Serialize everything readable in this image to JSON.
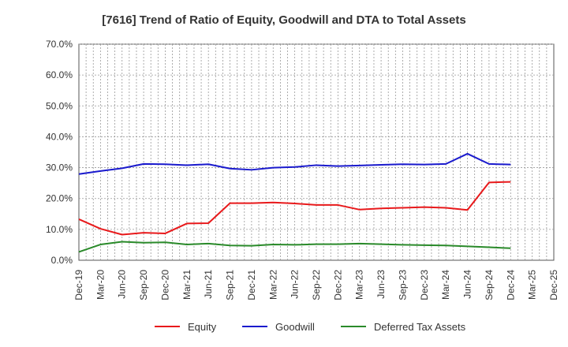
{
  "chart_data": {
    "type": "line",
    "title": "[7616]  Trend of Ratio of Equity, Goodwill and DTA to Total Assets",
    "xlabel": "",
    "ylabel": "",
    "ylim": [
      0,
      70
    ],
    "y_ticks": [
      "0.0%",
      "10.0%",
      "20.0%",
      "30.0%",
      "40.0%",
      "50.0%",
      "60.0%",
      "70.0%"
    ],
    "x_tick_labels": [
      "Dec-19",
      "Mar-20",
      "Jun-20",
      "Sep-20",
      "Dec-20",
      "Mar-21",
      "Jun-21",
      "Sep-21",
      "Dec-21",
      "Mar-22",
      "Jun-22",
      "Sep-22",
      "Dec-22",
      "Mar-23",
      "Jun-23",
      "Sep-23",
      "Dec-23",
      "Mar-24",
      "Jun-24",
      "Sep-24",
      "Dec-24",
      "Mar-25",
      "Dec-25"
    ],
    "categories": [
      "Dec-19",
      "Mar-20",
      "Jun-20",
      "Sep-20",
      "Dec-20",
      "Mar-21",
      "Jun-21",
      "Sep-21",
      "Dec-21",
      "Mar-22",
      "Jun-22",
      "Sep-22",
      "Dec-22",
      "Mar-23",
      "Jun-23",
      "Sep-23",
      "Dec-23",
      "Mar-24",
      "Jun-24",
      "Sep-24",
      "Dec-24"
    ],
    "grid": true,
    "legend_position": "bottom",
    "series": [
      {
        "name": "Equity",
        "color": "#e8191b",
        "values": [
          13.3,
          10.2,
          8.3,
          8.9,
          8.7,
          11.9,
          12.0,
          18.5,
          18.5,
          18.7,
          18.4,
          17.9,
          17.9,
          16.4,
          16.8,
          17.0,
          17.2,
          17.0,
          16.3,
          25.2,
          25.4
        ]
      },
      {
        "name": "Goodwill",
        "color": "#1a1acd",
        "values": [
          27.9,
          28.9,
          29.8,
          31.2,
          31.1,
          30.8,
          31.1,
          29.7,
          29.3,
          30.0,
          30.2,
          30.8,
          30.5,
          30.7,
          30.9,
          31.1,
          31.0,
          31.2,
          34.5,
          31.2,
          31.0
        ]
      },
      {
        "name": "Deferred Tax Assets",
        "color": "#2a8a2a",
        "values": [
          2.7,
          5.1,
          6.0,
          5.7,
          5.8,
          5.1,
          5.4,
          4.8,
          4.7,
          5.1,
          5.0,
          5.2,
          5.2,
          5.4,
          5.2,
          5.0,
          4.9,
          4.8,
          4.5,
          4.2,
          3.9
        ]
      }
    ]
  }
}
